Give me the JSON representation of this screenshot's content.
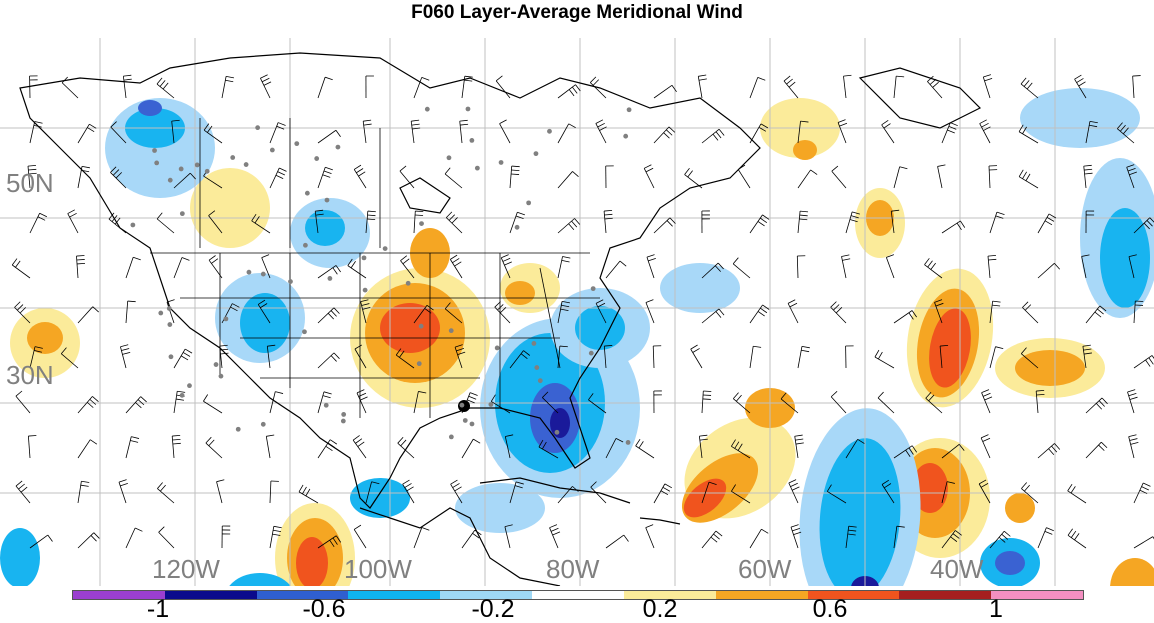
{
  "title": "F060 Layer-Average Meridional Wind",
  "lat_labels": [
    "50N",
    "30N"
  ],
  "lon_labels": [
    "120W",
    "100W",
    "80W",
    "60W",
    "40W"
  ],
  "colorbar": {
    "colors": [
      "#9b3fd0",
      "#0a0a8c",
      "#2f5fd0",
      "#0fb3ef",
      "#9fd8f5",
      "#ffffff",
      "#fbeb9a",
      "#f5a623",
      "#f0541e",
      "#a51f1f",
      "#f48fc1"
    ],
    "tick_labels": [
      "-1",
      "-0.6",
      "-0.2",
      "0.2",
      "0.6",
      "1"
    ]
  },
  "map_colors": {
    "light_blue": "#a8d8f8",
    "blue": "#18b4f0",
    "dark_blue": "#3a62d2",
    "navy": "#1a1a9a",
    "light_yellow": "#fbeb9a",
    "orange": "#f5a623",
    "red_orange": "#f0541e",
    "dark_red": "#b02020",
    "coast": "#000000",
    "grid": "#c0c0c0",
    "station": "#808080"
  }
}
